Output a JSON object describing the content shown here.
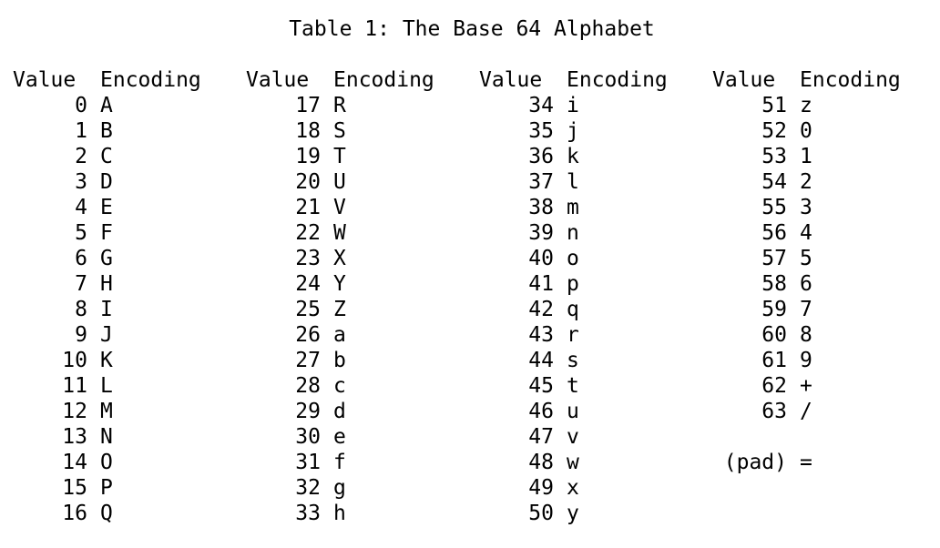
{
  "title": "Table 1: The Base 64 Alphabet",
  "headers": {
    "value": "Value",
    "encoding": "Encoding"
  },
  "columns": [
    {
      "rows": [
        {
          "v": "0",
          "e": "A"
        },
        {
          "v": "1",
          "e": "B"
        },
        {
          "v": "2",
          "e": "C"
        },
        {
          "v": "3",
          "e": "D"
        },
        {
          "v": "4",
          "e": "E"
        },
        {
          "v": "5",
          "e": "F"
        },
        {
          "v": "6",
          "e": "G"
        },
        {
          "v": "7",
          "e": "H"
        },
        {
          "v": "8",
          "e": "I"
        },
        {
          "v": "9",
          "e": "J"
        },
        {
          "v": "10",
          "e": "K"
        },
        {
          "v": "11",
          "e": "L"
        },
        {
          "v": "12",
          "e": "M"
        },
        {
          "v": "13",
          "e": "N"
        },
        {
          "v": "14",
          "e": "O"
        },
        {
          "v": "15",
          "e": "P"
        },
        {
          "v": "16",
          "e": "Q"
        }
      ]
    },
    {
      "rows": [
        {
          "v": "17",
          "e": "R"
        },
        {
          "v": "18",
          "e": "S"
        },
        {
          "v": "19",
          "e": "T"
        },
        {
          "v": "20",
          "e": "U"
        },
        {
          "v": "21",
          "e": "V"
        },
        {
          "v": "22",
          "e": "W"
        },
        {
          "v": "23",
          "e": "X"
        },
        {
          "v": "24",
          "e": "Y"
        },
        {
          "v": "25",
          "e": "Z"
        },
        {
          "v": "26",
          "e": "a"
        },
        {
          "v": "27",
          "e": "b"
        },
        {
          "v": "28",
          "e": "c"
        },
        {
          "v": "29",
          "e": "d"
        },
        {
          "v": "30",
          "e": "e"
        },
        {
          "v": "31",
          "e": "f"
        },
        {
          "v": "32",
          "e": "g"
        },
        {
          "v": "33",
          "e": "h"
        }
      ]
    },
    {
      "rows": [
        {
          "v": "34",
          "e": "i"
        },
        {
          "v": "35",
          "e": "j"
        },
        {
          "v": "36",
          "e": "k"
        },
        {
          "v": "37",
          "e": "l"
        },
        {
          "v": "38",
          "e": "m"
        },
        {
          "v": "39",
          "e": "n"
        },
        {
          "v": "40",
          "e": "o"
        },
        {
          "v": "41",
          "e": "p"
        },
        {
          "v": "42",
          "e": "q"
        },
        {
          "v": "43",
          "e": "r"
        },
        {
          "v": "44",
          "e": "s"
        },
        {
          "v": "45",
          "e": "t"
        },
        {
          "v": "46",
          "e": "u"
        },
        {
          "v": "47",
          "e": "v"
        },
        {
          "v": "48",
          "e": "w"
        },
        {
          "v": "49",
          "e": "x"
        },
        {
          "v": "50",
          "e": "y"
        }
      ]
    },
    {
      "rows": [
        {
          "v": "51",
          "e": "z"
        },
        {
          "v": "52",
          "e": "0"
        },
        {
          "v": "53",
          "e": "1"
        },
        {
          "v": "54",
          "e": "2"
        },
        {
          "v": "55",
          "e": "3"
        },
        {
          "v": "56",
          "e": "4"
        },
        {
          "v": "57",
          "e": "5"
        },
        {
          "v": "58",
          "e": "6"
        },
        {
          "v": "59",
          "e": "7"
        },
        {
          "v": "60",
          "e": "8"
        },
        {
          "v": "61",
          "e": "9"
        },
        {
          "v": "62",
          "e": "+"
        },
        {
          "v": "63",
          "e": "/"
        },
        {
          "v": "",
          "e": ""
        },
        {
          "v": "(pad)",
          "e": "="
        }
      ]
    }
  ]
}
